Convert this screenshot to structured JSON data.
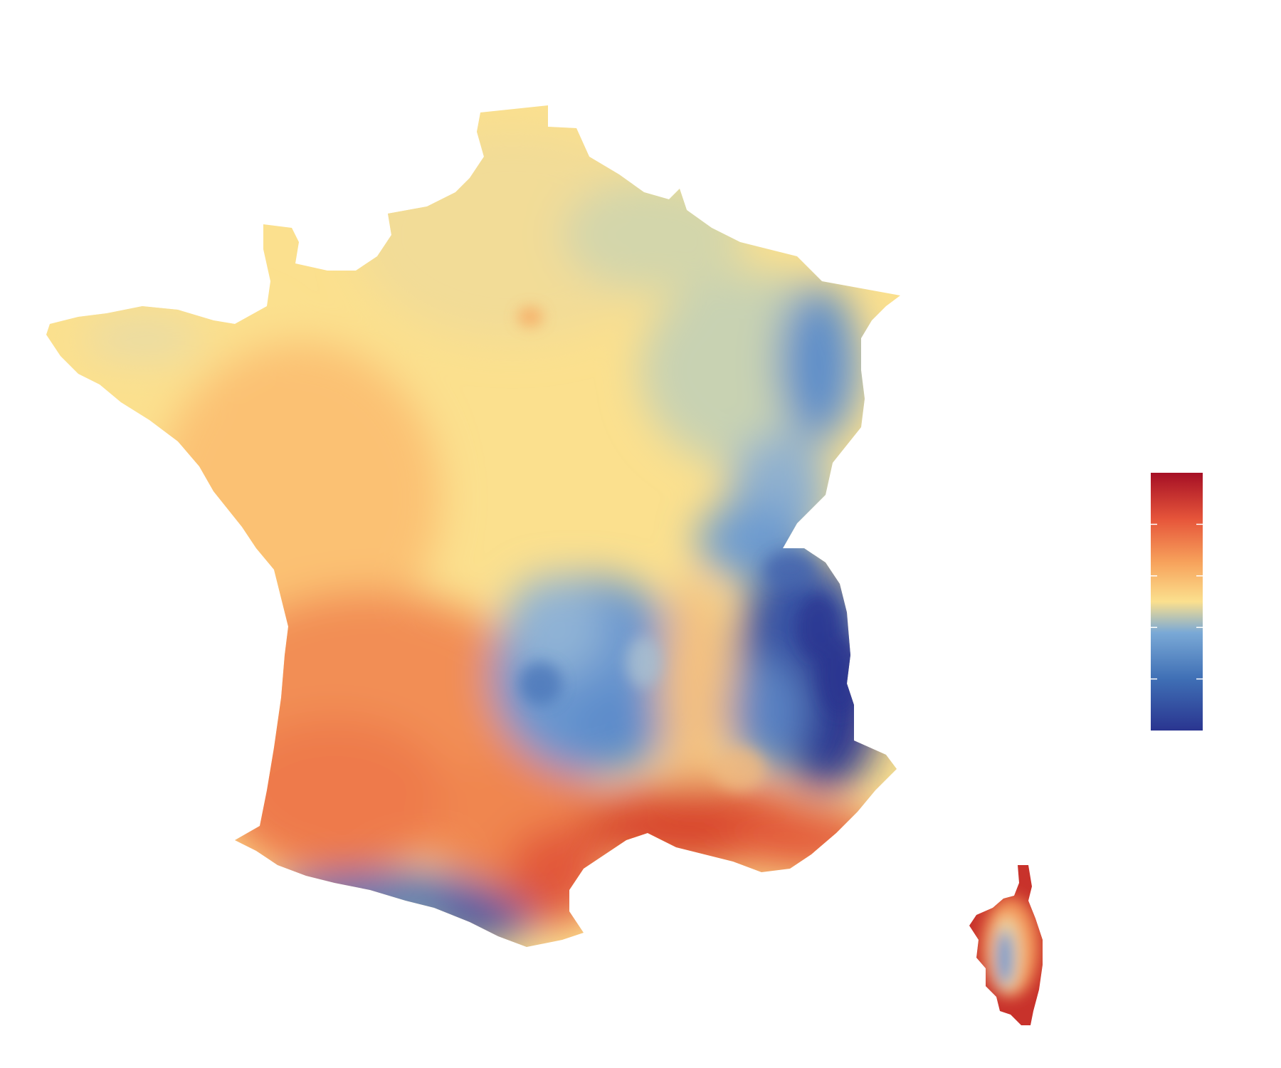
{
  "map": {
    "region": "France",
    "palette": {
      "high": "#a50f25",
      "warm": "#e6553a",
      "mid_warm": "#f7a35c",
      "neutral": "#fbe08e",
      "mid_cool": "#7aa9d6",
      "cool": "#3f6fb5",
      "low": "#2a3590"
    },
    "legend": {
      "type": "continuous-colorbar",
      "tick_count": 4,
      "tick_labels": []
    }
  }
}
